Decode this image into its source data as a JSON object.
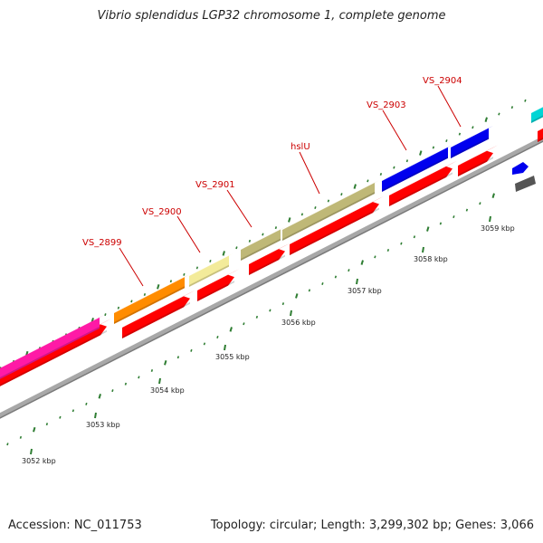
{
  "title": "Vibrio splendidus LGP32 chromosome 1, complete genome",
  "accession": "Accession: NC_011753",
  "summary": "Topology: circular; Length: 3,299,302 bp; Genes: 3,066",
  "colors": {
    "backbone": "#9a9a9a",
    "tick": "#2e7d32",
    "label": "#cc0000",
    "cds": "#ff0000"
  },
  "kbp_labels": [
    "3052 kbp",
    "3053 kbp",
    "3054 kbp",
    "3055 kbp",
    "3056 kbp",
    "3057 kbp",
    "3058 kbp",
    "3059 kbp"
  ],
  "gene_labels": [
    "VS_2899",
    "VS_2900",
    "VS_2901",
    "hslU",
    "VS_2903",
    "VS_2904"
  ],
  "gene_colors": {
    "magenta": "#ff1aa6",
    "orange": "#ff8c00",
    "pale_yellow": "#f3eb9a",
    "khaki": "#bfb877",
    "blue": "#0000ee",
    "cyan": "#00d5d5",
    "gray": "#555555"
  }
}
